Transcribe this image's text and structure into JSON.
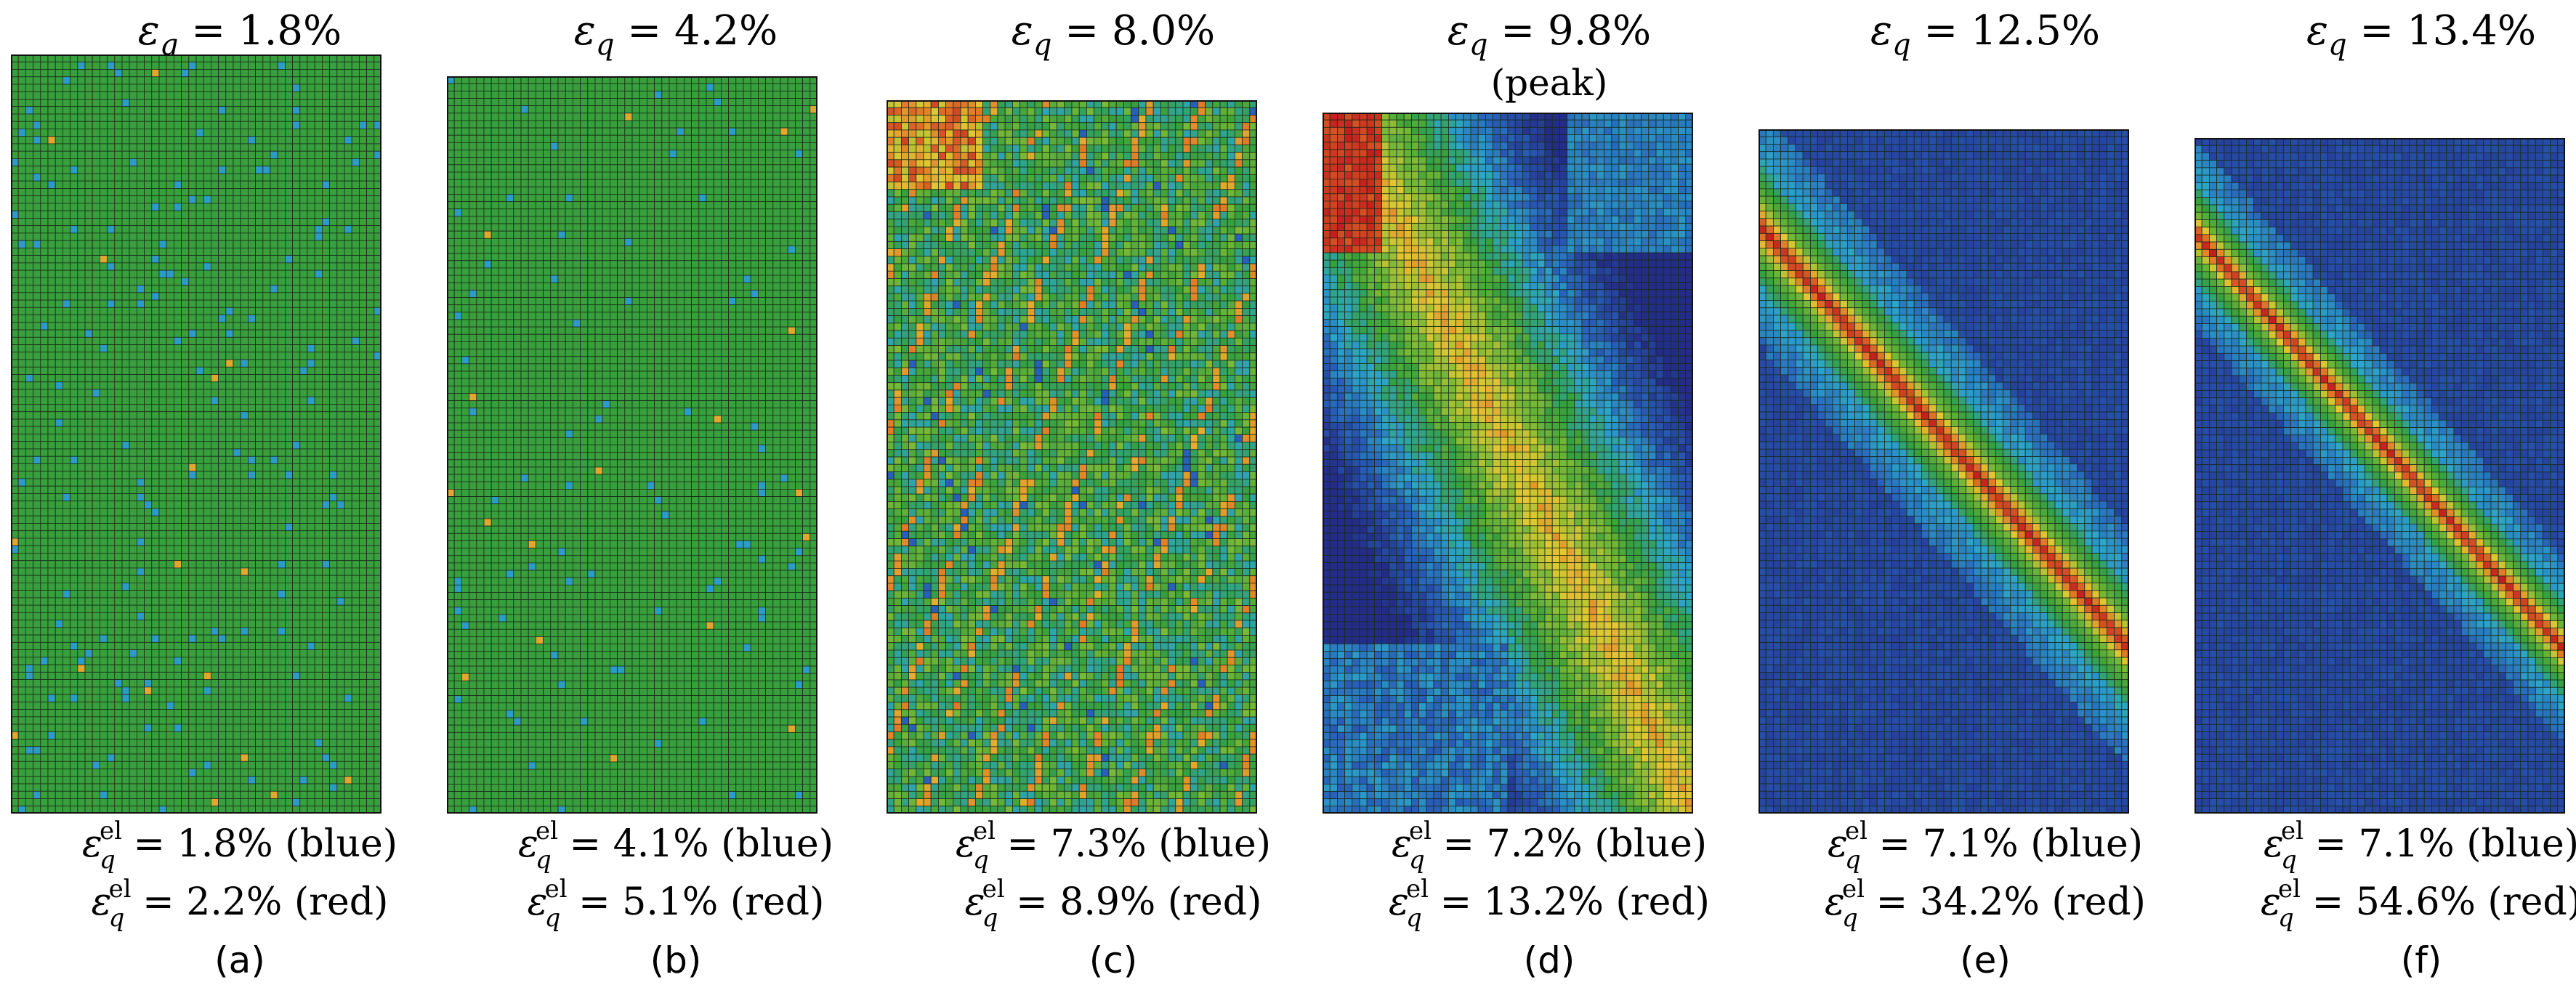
{
  "figure": {
    "symbol": "ε",
    "subscript": "q",
    "superscript": "el",
    "peak_note": "(peak)",
    "legend_low": "blue",
    "legend_high": "red",
    "panels": [
      {
        "id": "a",
        "title": "ε_q = 1.8%",
        "strain": "1.8%",
        "el_blue": "1.8%",
        "el_red": "2.2%",
        "label": "(a)",
        "stage": "uniform"
      },
      {
        "id": "b",
        "title": "ε_q = 4.2%",
        "strain": "4.2%",
        "el_blue": "4.1%",
        "el_red": "5.1%",
        "label": "(b)",
        "stage": "uniform-cross"
      },
      {
        "id": "c",
        "title": "ε_q = 8.0%",
        "strain": "8.0%",
        "el_blue": "7.3%",
        "el_red": "8.9%",
        "label": "(c)",
        "stage": "multi-band"
      },
      {
        "id": "d",
        "title": "ε_q = 9.8% (peak)",
        "strain": "9.8%",
        "el_blue": "7.2%",
        "el_red": "13.2%",
        "label": "(d)",
        "stage": "broad-band",
        "peak": true
      },
      {
        "id": "e",
        "title": "ε_q = 12.5%",
        "strain": "12.5%",
        "el_blue": "7.1%",
        "el_red": "34.2%",
        "label": "(e)",
        "stage": "shear-band"
      },
      {
        "id": "f",
        "title": "ε_q = 13.4%",
        "strain": "13.4%",
        "el_blue": "7.1%",
        "el_red": "54.6%",
        "label": "(f)",
        "stage": "shear-band-narrow"
      }
    ]
  }
}
